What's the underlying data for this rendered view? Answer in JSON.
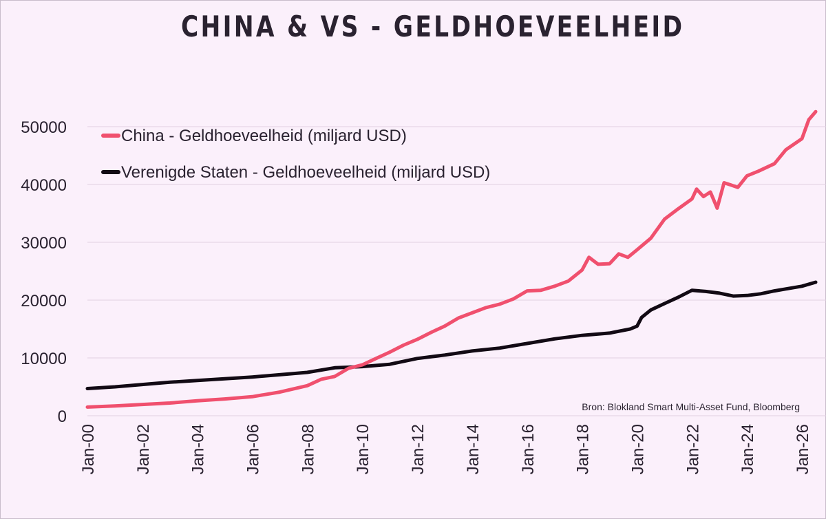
{
  "title": "CHINA & VS - GELDHOEVEELHEID",
  "source_note": "Bron: Blokland Smart Multi-Asset Fund, Bloomberg",
  "colors": {
    "background": "#fbf0fb",
    "china": "#f0506e",
    "us": "#120a14",
    "grid": "#e0d0e0",
    "text": "#2a2230"
  },
  "chart_data": {
    "type": "line",
    "title": "CHINA & VS - GELDHOEVEELHEID",
    "xlabel": "",
    "ylabel": "",
    "ylim": [
      0,
      52500
    ],
    "xlim": [
      "2000-01",
      "2026-07"
    ],
    "y_ticks": [
      "0",
      "10000",
      "20000",
      "30000",
      "40000",
      "50000"
    ],
    "x_ticks": [
      "Jan-00",
      "Jan-02",
      "Jan-04",
      "Jan-06",
      "Jan-08",
      "Jan-10",
      "Jan-12",
      "Jan-14",
      "Jan-16",
      "Jan-18",
      "Jan-20",
      "Jan-22",
      "Jan-24",
      "Jan-26"
    ],
    "grid": "horizontal",
    "legend_position": "top-left",
    "series": [
      {
        "name": "China - Geldhoeveelheid (miljard USD)",
        "color": "#f0506e",
        "points": [
          [
            "2000-01",
            1500
          ],
          [
            "2001-01",
            1700
          ],
          [
            "2002-01",
            1950
          ],
          [
            "2003-01",
            2200
          ],
          [
            "2004-01",
            2600
          ],
          [
            "2005-01",
            2900
          ],
          [
            "2006-01",
            3300
          ],
          [
            "2007-01",
            4100
          ],
          [
            "2008-01",
            5200
          ],
          [
            "2008-07",
            6300
          ],
          [
            "2009-01",
            6800
          ],
          [
            "2009-07",
            8200
          ],
          [
            "2010-01",
            8800
          ],
          [
            "2010-07",
            9900
          ],
          [
            "2011-01",
            11000
          ],
          [
            "2011-07",
            12200
          ],
          [
            "2012-01",
            13200
          ],
          [
            "2012-07",
            14400
          ],
          [
            "2013-01",
            15500
          ],
          [
            "2013-07",
            16900
          ],
          [
            "2014-01",
            17800
          ],
          [
            "2014-07",
            18700
          ],
          [
            "2015-01",
            19300
          ],
          [
            "2015-07",
            20200
          ],
          [
            "2016-01",
            21600
          ],
          [
            "2016-07",
            21700
          ],
          [
            "2017-01",
            22400
          ],
          [
            "2017-07",
            23300
          ],
          [
            "2018-01",
            25200
          ],
          [
            "2018-04",
            27400
          ],
          [
            "2018-08",
            26200
          ],
          [
            "2019-01",
            26300
          ],
          [
            "2019-05",
            28000
          ],
          [
            "2019-09",
            27400
          ],
          [
            "2020-01",
            28700
          ],
          [
            "2020-07",
            30700
          ],
          [
            "2021-01",
            34000
          ],
          [
            "2021-07",
            35800
          ],
          [
            "2022-01",
            37500
          ],
          [
            "2022-03",
            39200
          ],
          [
            "2022-06",
            37900
          ],
          [
            "2022-09",
            38700
          ],
          [
            "2022-12",
            35900
          ],
          [
            "2023-03",
            40300
          ],
          [
            "2023-06",
            39900
          ],
          [
            "2023-09",
            39500
          ],
          [
            "2024-01",
            41500
          ],
          [
            "2024-06",
            42300
          ],
          [
            "2025-01",
            43600
          ],
          [
            "2025-06",
            46000
          ],
          [
            "2026-01",
            47900
          ],
          [
            "2026-04",
            51200
          ],
          [
            "2026-07",
            52600
          ]
        ]
      },
      {
        "name": "Verenigde Staten - Geldhoeveelheid (miljard USD)",
        "color": "#120a14",
        "points": [
          [
            "2000-01",
            4700
          ],
          [
            "2001-01",
            5000
          ],
          [
            "2002-01",
            5400
          ],
          [
            "2003-01",
            5800
          ],
          [
            "2004-01",
            6100
          ],
          [
            "2005-01",
            6400
          ],
          [
            "2006-01",
            6700
          ],
          [
            "2007-01",
            7100
          ],
          [
            "2008-01",
            7500
          ],
          [
            "2009-01",
            8300
          ],
          [
            "2010-01",
            8500
          ],
          [
            "2011-01",
            8900
          ],
          [
            "2012-01",
            9900
          ],
          [
            "2013-01",
            10500
          ],
          [
            "2014-01",
            11200
          ],
          [
            "2015-01",
            11700
          ],
          [
            "2016-01",
            12500
          ],
          [
            "2017-01",
            13300
          ],
          [
            "2018-01",
            13900
          ],
          [
            "2019-01",
            14300
          ],
          [
            "2019-10",
            15000
          ],
          [
            "2020-01",
            15500
          ],
          [
            "2020-03",
            17000
          ],
          [
            "2020-07",
            18300
          ],
          [
            "2021-01",
            19400
          ],
          [
            "2021-07",
            20500
          ],
          [
            "2022-01",
            21700
          ],
          [
            "2022-07",
            21500
          ],
          [
            "2023-01",
            21200
          ],
          [
            "2023-07",
            20700
          ],
          [
            "2024-01",
            20800
          ],
          [
            "2024-07",
            21100
          ],
          [
            "2025-01",
            21600
          ],
          [
            "2025-07",
            22000
          ],
          [
            "2026-01",
            22400
          ],
          [
            "2026-07",
            23100
          ]
        ]
      }
    ]
  }
}
